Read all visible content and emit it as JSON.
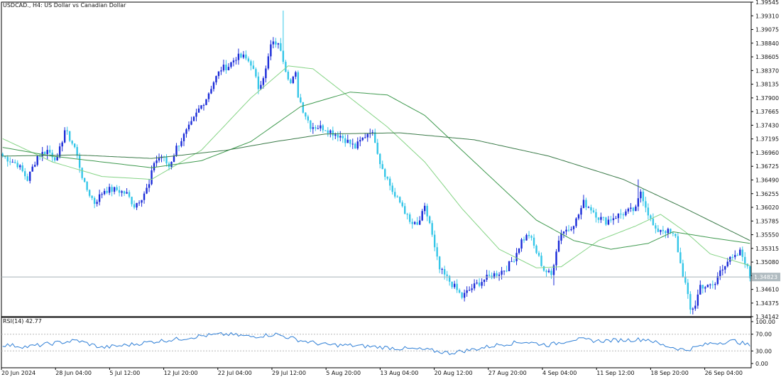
{
  "title": "USDCAD., H4:  US Dollar vs Canadian Dollar",
  "colors": {
    "background": "#ffffff",
    "bull": "#1a2bd8",
    "bear": "#34c6e8",
    "ma_fast": "#86d486",
    "ma_mid": "#3f9a4f",
    "ma_slow": "#3a7a48",
    "rsi": "#2f7fd6",
    "price_line": "#a6b2b8",
    "price_label_bg": "#b0bbc0"
  },
  "chart_data": [
    {
      "type": "candlestick",
      "title": "USDCAD., H4:  US Dollar vs Canadian Dollar",
      "ylim": [
        1.34142,
        1.39545
      ],
      "y_ticks": [
        "1.39545",
        "1.39310",
        "1.39075",
        "1.38840",
        "1.38605",
        "1.38370",
        "1.38135",
        "1.37900",
        "1.37665",
        "1.37430",
        "1.37195",
        "1.36960",
        "1.36725",
        "1.36490",
        "1.36255",
        "1.36020",
        "1.35785",
        "1.35550",
        "1.35315",
        "1.35080",
        "1.34845",
        "1.34610",
        "1.34375",
        "1.34142"
      ],
      "current_price": "1.34823",
      "x_labels": [
        "20 Jun 2024",
        "28 Jun 04:00",
        "5 Jul 12:00",
        "12 Jul 20:00",
        "22 Jul 04:00",
        "29 Jul 12:00",
        "5 Aug 20:00",
        "13 Aug 04:00",
        "20 Aug 12:00",
        "27 Aug 20:00",
        "4 Sep 04:00",
        "11 Sep 12:00",
        "18 Sep 20:00",
        "26 Sep 04:00"
      ],
      "close_path": [
        {
          "i": 0,
          "p": 1.369
        },
        {
          "i": 6,
          "p": 1.3676
        },
        {
          "i": 10,
          "p": 1.365
        },
        {
          "i": 14,
          "p": 1.369
        },
        {
          "i": 18,
          "p": 1.37
        },
        {
          "i": 22,
          "p": 1.3684
        },
        {
          "i": 25,
          "p": 1.3735
        },
        {
          "i": 29,
          "p": 1.3705
        },
        {
          "i": 33,
          "p": 1.364
        },
        {
          "i": 37,
          "p": 1.361
        },
        {
          "i": 41,
          "p": 1.3632
        },
        {
          "i": 46,
          "p": 1.3632
        },
        {
          "i": 50,
          "p": 1.3625
        },
        {
          "i": 53,
          "p": 1.3605
        },
        {
          "i": 56,
          "p": 1.362
        },
        {
          "i": 59,
          "p": 1.364
        },
        {
          "i": 61,
          "p": 1.368
        },
        {
          "i": 64,
          "p": 1.369
        },
        {
          "i": 67,
          "p": 1.3672
        },
        {
          "i": 70,
          "p": 1.3705
        },
        {
          "i": 73,
          "p": 1.3725
        },
        {
          "i": 76,
          "p": 1.3745
        },
        {
          "i": 79,
          "p": 1.377
        },
        {
          "i": 82,
          "p": 1.379
        },
        {
          "i": 85,
          "p": 1.3818
        },
        {
          "i": 88,
          "p": 1.384
        },
        {
          "i": 91,
          "p": 1.3845
        },
        {
          "i": 94,
          "p": 1.386
        },
        {
          "i": 97,
          "p": 1.386
        },
        {
          "i": 100,
          "p": 1.385
        },
        {
          "i": 103,
          "p": 1.3808
        },
        {
          "i": 106,
          "p": 1.3838
        },
        {
          "i": 108,
          "p": 1.388
        },
        {
          "i": 110,
          "p": 1.3885
        },
        {
          "i": 112,
          "p": 1.3875
        },
        {
          "i": 114,
          "p": 1.384
        },
        {
          "i": 116,
          "p": 1.3815
        },
        {
          "i": 118,
          "p": 1.383
        },
        {
          "i": 119,
          "p": 1.3795
        },
        {
          "i": 121,
          "p": 1.377
        },
        {
          "i": 124,
          "p": 1.3742
        },
        {
          "i": 127,
          "p": 1.374
        },
        {
          "i": 130,
          "p": 1.3738
        },
        {
          "i": 133,
          "p": 1.373
        },
        {
          "i": 136,
          "p": 1.3725
        },
        {
          "i": 139,
          "p": 1.3715
        },
        {
          "i": 142,
          "p": 1.3705
        },
        {
          "i": 145,
          "p": 1.372
        },
        {
          "i": 148,
          "p": 1.3735
        },
        {
          "i": 150,
          "p": 1.3718
        },
        {
          "i": 152,
          "p": 1.368
        },
        {
          "i": 155,
          "p": 1.365
        },
        {
          "i": 158,
          "p": 1.362
        },
        {
          "i": 161,
          "p": 1.3605
        },
        {
          "i": 164,
          "p": 1.3575
        },
        {
          "i": 167,
          "p": 1.357
        },
        {
          "i": 170,
          "p": 1.36
        },
        {
          "i": 172,
          "p": 1.3575
        },
        {
          "i": 174,
          "p": 1.353
        },
        {
          "i": 176,
          "p": 1.3495
        },
        {
          "i": 179,
          "p": 1.348
        },
        {
          "i": 182,
          "p": 1.3465
        },
        {
          "i": 185,
          "p": 1.3448
        },
        {
          "i": 188,
          "p": 1.346
        },
        {
          "i": 191,
          "p": 1.347
        },
        {
          "i": 194,
          "p": 1.3478
        },
        {
          "i": 197,
          "p": 1.3485
        },
        {
          "i": 200,
          "p": 1.349
        },
        {
          "i": 203,
          "p": 1.3498
        },
        {
          "i": 206,
          "p": 1.3515
        },
        {
          "i": 209,
          "p": 1.3545
        },
        {
          "i": 212,
          "p": 1.3555
        },
        {
          "i": 215,
          "p": 1.3525
        },
        {
          "i": 218,
          "p": 1.3495
        },
        {
          "i": 221,
          "p": 1.3485
        },
        {
          "i": 223,
          "p": 1.353
        },
        {
          "i": 225,
          "p": 1.356
        },
        {
          "i": 228,
          "p": 1.3565
        },
        {
          "i": 231,
          "p": 1.358
        },
        {
          "i": 234,
          "p": 1.361
        },
        {
          "i": 237,
          "p": 1.36
        },
        {
          "i": 240,
          "p": 1.3585
        },
        {
          "i": 243,
          "p": 1.3578
        },
        {
          "i": 246,
          "p": 1.3585
        },
        {
          "i": 249,
          "p": 1.359
        },
        {
          "i": 252,
          "p": 1.3595
        },
        {
          "i": 255,
          "p": 1.3598
        },
        {
          "i": 257,
          "p": 1.363
        },
        {
          "i": 259,
          "p": 1.3605
        },
        {
          "i": 261,
          "p": 1.358
        },
        {
          "i": 263,
          "p": 1.356
        },
        {
          "i": 265,
          "p": 1.3565
        },
        {
          "i": 268,
          "p": 1.356
        },
        {
          "i": 271,
          "p": 1.355
        },
        {
          "i": 273,
          "p": 1.3505
        },
        {
          "i": 275,
          "p": 1.347
        },
        {
          "i": 277,
          "p": 1.3425
        },
        {
          "i": 279,
          "p": 1.3435
        },
        {
          "i": 281,
          "p": 1.3468
        },
        {
          "i": 284,
          "p": 1.3465
        },
        {
          "i": 287,
          "p": 1.347
        },
        {
          "i": 289,
          "p": 1.3495
        },
        {
          "i": 292,
          "p": 1.351
        },
        {
          "i": 295,
          "p": 1.3515
        },
        {
          "i": 297,
          "p": 1.3525
        },
        {
          "i": 299,
          "p": 1.351
        },
        {
          "i": 301,
          "p": 1.3482
        }
      ],
      "moving_averages": [
        {
          "role": "fast",
          "points": [
            {
              "i": 0,
              "p": 1.372
            },
            {
              "i": 20,
              "p": 1.368
            },
            {
              "i": 40,
              "p": 1.3655
            },
            {
              "i": 60,
              "p": 1.365
            },
            {
              "i": 80,
              "p": 1.37
            },
            {
              "i": 100,
              "p": 1.379
            },
            {
              "i": 115,
              "p": 1.3845
            },
            {
              "i": 125,
              "p": 1.384
            },
            {
              "i": 140,
              "p": 1.379
            },
            {
              "i": 155,
              "p": 1.374
            },
            {
              "i": 170,
              "p": 1.368
            },
            {
              "i": 185,
              "p": 1.36
            },
            {
              "i": 200,
              "p": 1.353
            },
            {
              "i": 215,
              "p": 1.3498
            },
            {
              "i": 225,
              "p": 1.35
            },
            {
              "i": 240,
              "p": 1.3545
            },
            {
              "i": 255,
              "p": 1.357
            },
            {
              "i": 265,
              "p": 1.359
            },
            {
              "i": 275,
              "p": 1.356
            },
            {
              "i": 285,
              "p": 1.3522
            },
            {
              "i": 301,
              "p": 1.3502
            }
          ]
        },
        {
          "role": "mid",
          "points": [
            {
              "i": 0,
              "p": 1.3705
            },
            {
              "i": 20,
              "p": 1.369
            },
            {
              "i": 40,
              "p": 1.368
            },
            {
              "i": 60,
              "p": 1.367
            },
            {
              "i": 80,
              "p": 1.3682
            },
            {
              "i": 100,
              "p": 1.3715
            },
            {
              "i": 120,
              "p": 1.3775
            },
            {
              "i": 140,
              "p": 1.38
            },
            {
              "i": 155,
              "p": 1.3795
            },
            {
              "i": 170,
              "p": 1.376
            },
            {
              "i": 185,
              "p": 1.37
            },
            {
              "i": 200,
              "p": 1.364
            },
            {
              "i": 215,
              "p": 1.358
            },
            {
              "i": 230,
              "p": 1.3545
            },
            {
              "i": 245,
              "p": 1.353
            },
            {
              "i": 260,
              "p": 1.354
            },
            {
              "i": 270,
              "p": 1.356
            },
            {
              "i": 285,
              "p": 1.355
            },
            {
              "i": 301,
              "p": 1.354
            }
          ]
        },
        {
          "role": "slow",
          "points": [
            {
              "i": 0,
              "p": 1.369
            },
            {
              "i": 30,
              "p": 1.3692
            },
            {
              "i": 60,
              "p": 1.3686
            },
            {
              "i": 90,
              "p": 1.37
            },
            {
              "i": 110,
              "p": 1.3715
            },
            {
              "i": 130,
              "p": 1.3728
            },
            {
              "i": 160,
              "p": 1.373
            },
            {
              "i": 190,
              "p": 1.3718
            },
            {
              "i": 220,
              "p": 1.369
            },
            {
              "i": 250,
              "p": 1.365
            },
            {
              "i": 275,
              "p": 1.36
            },
            {
              "i": 301,
              "p": 1.3545
            }
          ]
        }
      ]
    },
    {
      "type": "line",
      "title": "RSI(14) 42.77",
      "ylim": [
        0,
        100
      ],
      "y_ticks": [
        "100.00",
        "70.00",
        "30.00",
        "0.00"
      ],
      "levels": [
        70,
        30
      ],
      "points": [
        {
          "i": 0,
          "v": 45
        },
        {
          "i": 10,
          "v": 40
        },
        {
          "i": 20,
          "v": 48
        },
        {
          "i": 30,
          "v": 55
        },
        {
          "i": 40,
          "v": 38
        },
        {
          "i": 50,
          "v": 44
        },
        {
          "i": 60,
          "v": 52
        },
        {
          "i": 70,
          "v": 58
        },
        {
          "i": 80,
          "v": 66
        },
        {
          "i": 90,
          "v": 70
        },
        {
          "i": 100,
          "v": 64
        },
        {
          "i": 110,
          "v": 70
        },
        {
          "i": 120,
          "v": 55
        },
        {
          "i": 130,
          "v": 45
        },
        {
          "i": 140,
          "v": 43
        },
        {
          "i": 150,
          "v": 40
        },
        {
          "i": 160,
          "v": 36
        },
        {
          "i": 170,
          "v": 33
        },
        {
          "i": 180,
          "v": 25
        },
        {
          "i": 190,
          "v": 34
        },
        {
          "i": 200,
          "v": 45
        },
        {
          "i": 210,
          "v": 52
        },
        {
          "i": 220,
          "v": 44
        },
        {
          "i": 230,
          "v": 58
        },
        {
          "i": 240,
          "v": 54
        },
        {
          "i": 250,
          "v": 56
        },
        {
          "i": 260,
          "v": 58
        },
        {
          "i": 265,
          "v": 45
        },
        {
          "i": 275,
          "v": 32
        },
        {
          "i": 285,
          "v": 48
        },
        {
          "i": 295,
          "v": 54
        },
        {
          "i": 301,
          "v": 42.77
        }
      ]
    }
  ]
}
